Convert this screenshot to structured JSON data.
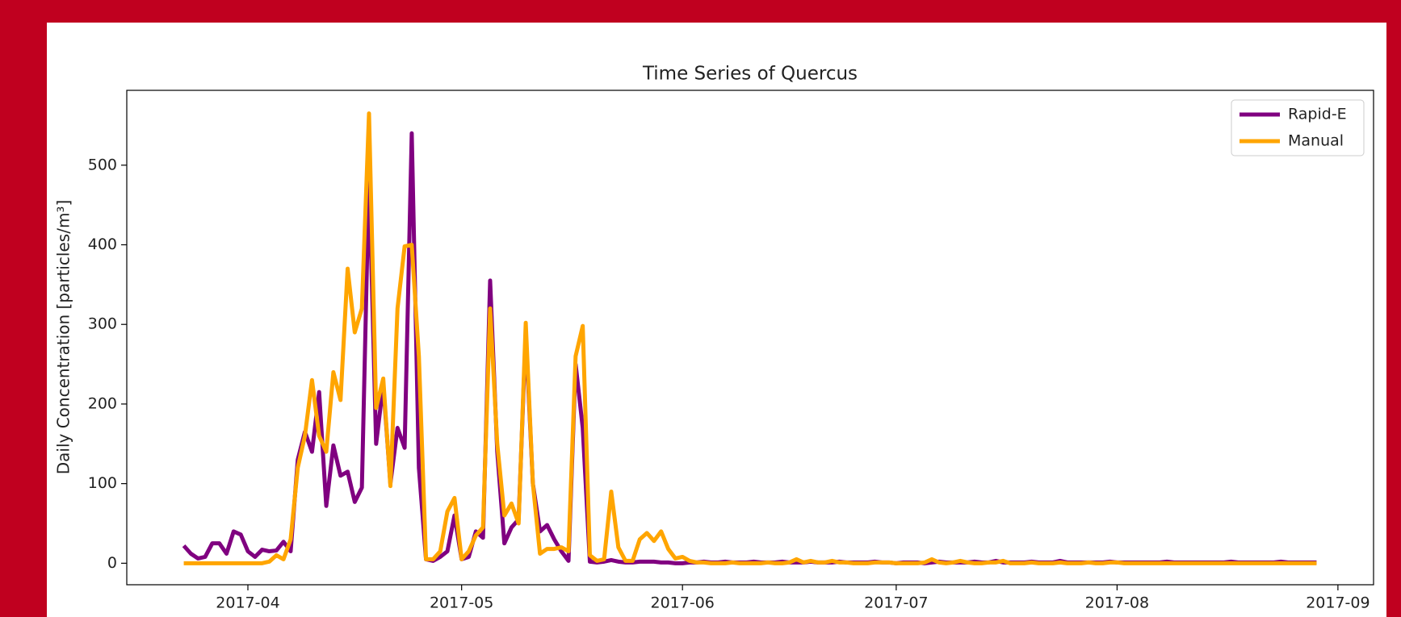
{
  "chart_data": {
    "type": "line",
    "title": "Time Series of Quercus",
    "ylabel": "Daily Concentration [particles/m³]",
    "x": [
      82,
      83,
      84,
      85,
      86,
      87,
      88,
      89,
      90,
      91,
      92,
      93,
      94,
      95,
      96,
      97,
      98,
      99,
      100,
      101,
      102,
      103,
      104,
      105,
      106,
      107,
      108,
      109,
      110,
      111,
      112,
      113,
      114,
      115,
      116,
      117,
      118,
      119,
      120,
      121,
      122,
      123,
      124,
      125,
      126,
      127,
      128,
      129,
      130,
      131,
      132,
      133,
      134,
      135,
      136,
      137,
      138,
      139,
      140,
      141,
      142,
      143,
      144,
      145,
      146,
      147,
      148,
      149,
      150,
      151,
      152,
      153,
      154,
      155,
      156,
      157,
      158,
      159,
      160,
      161,
      162,
      163,
      164,
      165,
      166,
      167,
      168,
      169,
      170,
      171,
      172,
      173,
      174,
      175,
      176,
      177,
      178,
      179,
      180,
      181,
      182,
      183,
      184,
      185,
      186,
      187,
      188,
      189,
      190,
      191,
      192,
      193,
      194,
      195,
      196,
      197,
      198,
      199,
      200,
      201,
      202,
      203,
      204,
      205,
      206,
      207,
      208,
      209,
      210,
      211,
      212,
      213,
      214,
      215,
      216,
      217,
      218,
      219,
      220,
      221,
      222,
      223,
      224,
      225,
      226,
      227,
      228,
      229,
      230,
      231,
      232,
      233,
      234,
      235,
      236,
      237,
      238,
      239,
      240,
      241
    ],
    "series": [
      {
        "name": "Rapid-E",
        "color": "#800080",
        "values": [
          22,
          12,
          6,
          8,
          25,
          25,
          12,
          40,
          36,
          15,
          8,
          17,
          15,
          16,
          27,
          15,
          130,
          165,
          140,
          215,
          72,
          148,
          110,
          115,
          77,
          95,
          490,
          150,
          225,
          100,
          170,
          145,
          540,
          120,
          5,
          3,
          8,
          15,
          60,
          5,
          8,
          40,
          32,
          355,
          140,
          25,
          45,
          55,
          290,
          100,
          40,
          48,
          30,
          15,
          3,
          250,
          170,
          2,
          1,
          2,
          4,
          2,
          1,
          1,
          2,
          2,
          2,
          1,
          1,
          0,
          0,
          1,
          1,
          2,
          1,
          1,
          2,
          1,
          1,
          1,
          2,
          1,
          1,
          1,
          2,
          1,
          1,
          1,
          2,
          1,
          1,
          1,
          2,
          1,
          1,
          1,
          1,
          2,
          1,
          1,
          0,
          1,
          1,
          1,
          0,
          1,
          2,
          1,
          1,
          1,
          1,
          2,
          1,
          1,
          3,
          1,
          1,
          1,
          1,
          2,
          1,
          1,
          1,
          3,
          1,
          1,
          1,
          1,
          1,
          1,
          2,
          1,
          1,
          1,
          1,
          1,
          1,
          1,
          2,
          1,
          1,
          1,
          1,
          1,
          1,
          1,
          1,
          2,
          1,
          1,
          1,
          1,
          1,
          1,
          2,
          1,
          1,
          1,
          1,
          1
        ]
      },
      {
        "name": "Manual",
        "color": "#ffa500",
        "values": [
          0,
          0,
          0,
          0,
          0,
          0,
          0,
          0,
          0,
          0,
          0,
          0,
          2,
          10,
          5,
          30,
          120,
          160,
          230,
          160,
          140,
          240,
          205,
          370,
          290,
          320,
          565,
          195,
          232,
          97,
          320,
          398,
          400,
          260,
          5,
          5,
          15,
          65,
          82,
          5,
          15,
          35,
          45,
          320,
          150,
          60,
          75,
          50,
          302,
          100,
          12,
          18,
          18,
          20,
          15,
          260,
          298,
          10,
          3,
          5,
          90,
          20,
          3,
          3,
          30,
          38,
          28,
          40,
          18,
          6,
          8,
          3,
          1,
          1,
          0,
          0,
          0,
          1,
          0,
          0,
          0,
          0,
          1,
          0,
          0,
          1,
          5,
          1,
          3,
          1,
          1,
          3,
          1,
          1,
          0,
          0,
          0,
          1,
          1,
          1,
          0,
          0,
          0,
          0,
          1,
          5,
          1,
          0,
          1,
          3,
          1,
          0,
          0,
          1,
          1,
          3,
          0,
          0,
          0,
          1,
          0,
          0,
          0,
          1,
          0,
          0,
          0,
          1,
          0,
          0,
          1,
          1,
          0,
          0,
          0,
          0,
          0,
          0,
          0,
          0,
          0,
          0,
          0,
          0,
          0,
          0,
          0,
          0,
          0,
          0,
          0,
          0,
          0,
          0,
          0,
          0,
          0,
          0,
          0,
          0
        ]
      }
    ],
    "xlim": [
      74,
      249
    ],
    "xticks": [
      {
        "value": 91,
        "label": "2017-04"
      },
      {
        "value": 121,
        "label": "2017-05"
      },
      {
        "value": 152,
        "label": "2017-06"
      },
      {
        "value": 182,
        "label": "2017-07"
      },
      {
        "value": 213,
        "label": "2017-08"
      },
      {
        "value": 244,
        "label": "2017-09"
      }
    ],
    "ylim": [
      -27,
      594
    ],
    "yticks": [
      0,
      100,
      200,
      300,
      400,
      500
    ],
    "grid": false,
    "legend": "upper right"
  }
}
